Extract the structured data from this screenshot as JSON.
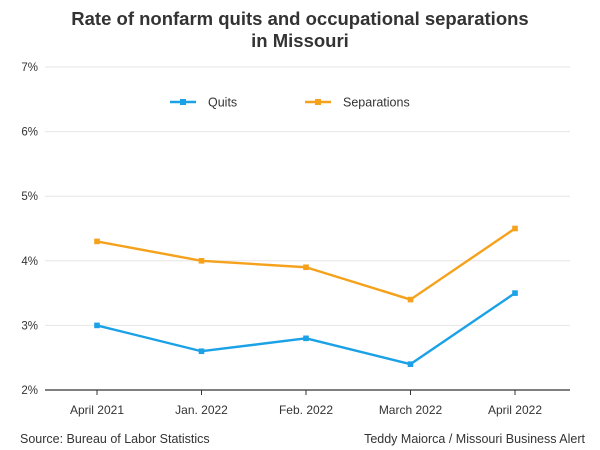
{
  "chart_data": {
    "type": "line",
    "title_lines": [
      "Rate of nonfarm quits and occupational separations",
      "in Missouri"
    ],
    "categories": [
      "April 2021",
      "Jan. 2022",
      "Feb. 2022",
      "March 2022",
      "April 2022"
    ],
    "series": [
      {
        "name": "Quits",
        "color": "#1ba1e6",
        "values": [
          3.0,
          2.6,
          2.8,
          2.4,
          3.5
        ]
      },
      {
        "name": "Separations",
        "color": "#f5a11c",
        "values": [
          4.3,
          4.0,
          3.9,
          3.4,
          4.5
        ]
      }
    ],
    "ylim": [
      2,
      7
    ],
    "yticks": [
      2,
      3,
      4,
      5,
      6,
      7
    ],
    "ytick_labels": [
      "2%",
      "3%",
      "4%",
      "5%",
      "6%",
      "7%"
    ],
    "grid": true,
    "legend_position": "top-center",
    "xlabel": "",
    "ylabel": ""
  },
  "footer": {
    "source": "Source: Bureau of Labor Statistics",
    "credit": "Teddy Maiorca / Missouri Business Alert"
  },
  "colors": {
    "gridline": "#e6e6e6",
    "baseline": "#333333",
    "text": "#333333"
  }
}
